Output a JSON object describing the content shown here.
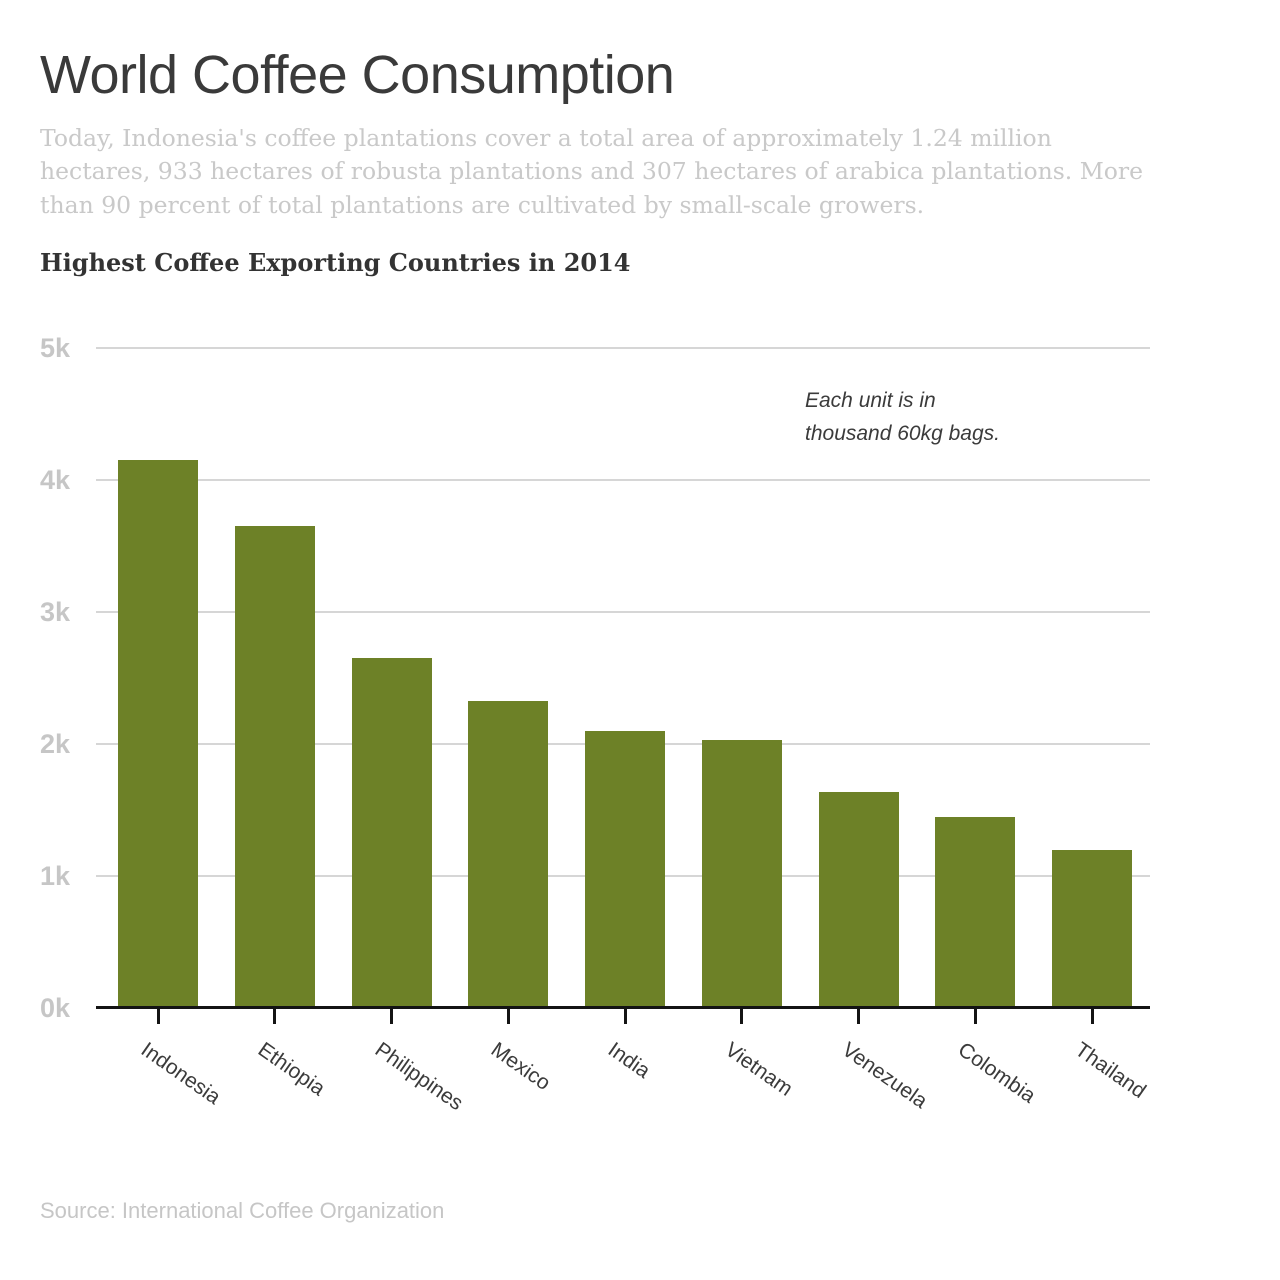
{
  "header": {
    "title": "World Coffee Consumption",
    "intro_lines": [
      "Today, Indonesia's coffee plantations cover a total area of approximately 1.24 million",
      "hectares, 933 hectares of robusta plantations and 307 hectares of arabica plantations. More",
      "than 90 percent of total plantations are cultivated by small-scale growers."
    ]
  },
  "chart": {
    "heading": "Highest Coffee Exporting Countries in 2014",
    "annotation_lines": [
      "Each unit is in",
      "thousand 60kg bags."
    ]
  },
  "chart_data": {
    "type": "bar",
    "title": "Highest Coffee Exporting Countries in 2014",
    "categories": [
      "Indonesia",
      "Ethiopia",
      "Philippines",
      "Mexico",
      "India",
      "Vietnam",
      "Venezuela",
      "Colombia",
      "Thailand"
    ],
    "values": [
      4150,
      3650,
      2650,
      2330,
      2100,
      2030,
      1640,
      1450,
      1200
    ],
    "unit_note": "Each unit is in thousand 60kg bags.",
    "xlabel": "",
    "ylabel": "",
    "ylim": [
      0,
      5000
    ],
    "y_ticks": [
      {
        "label": "0k",
        "value": 0
      },
      {
        "label": "1k",
        "value": 1000
      },
      {
        "label": "2k",
        "value": 2000
      },
      {
        "label": "3k",
        "value": 3000
      },
      {
        "label": "4k",
        "value": 4000
      },
      {
        "label": "5k",
        "value": 5000
      }
    ],
    "grid": true,
    "legend": "none"
  },
  "colors": {
    "bar": "#6d8127",
    "axis": "#141414",
    "gridline": "#d6d6d6",
    "muted_text": "#c9c9c9",
    "axis_tick_text": "#c6c6c6",
    "dark_text": "#3b3b3b"
  },
  "footer": {
    "source": "Source: International Coffee Organization"
  }
}
